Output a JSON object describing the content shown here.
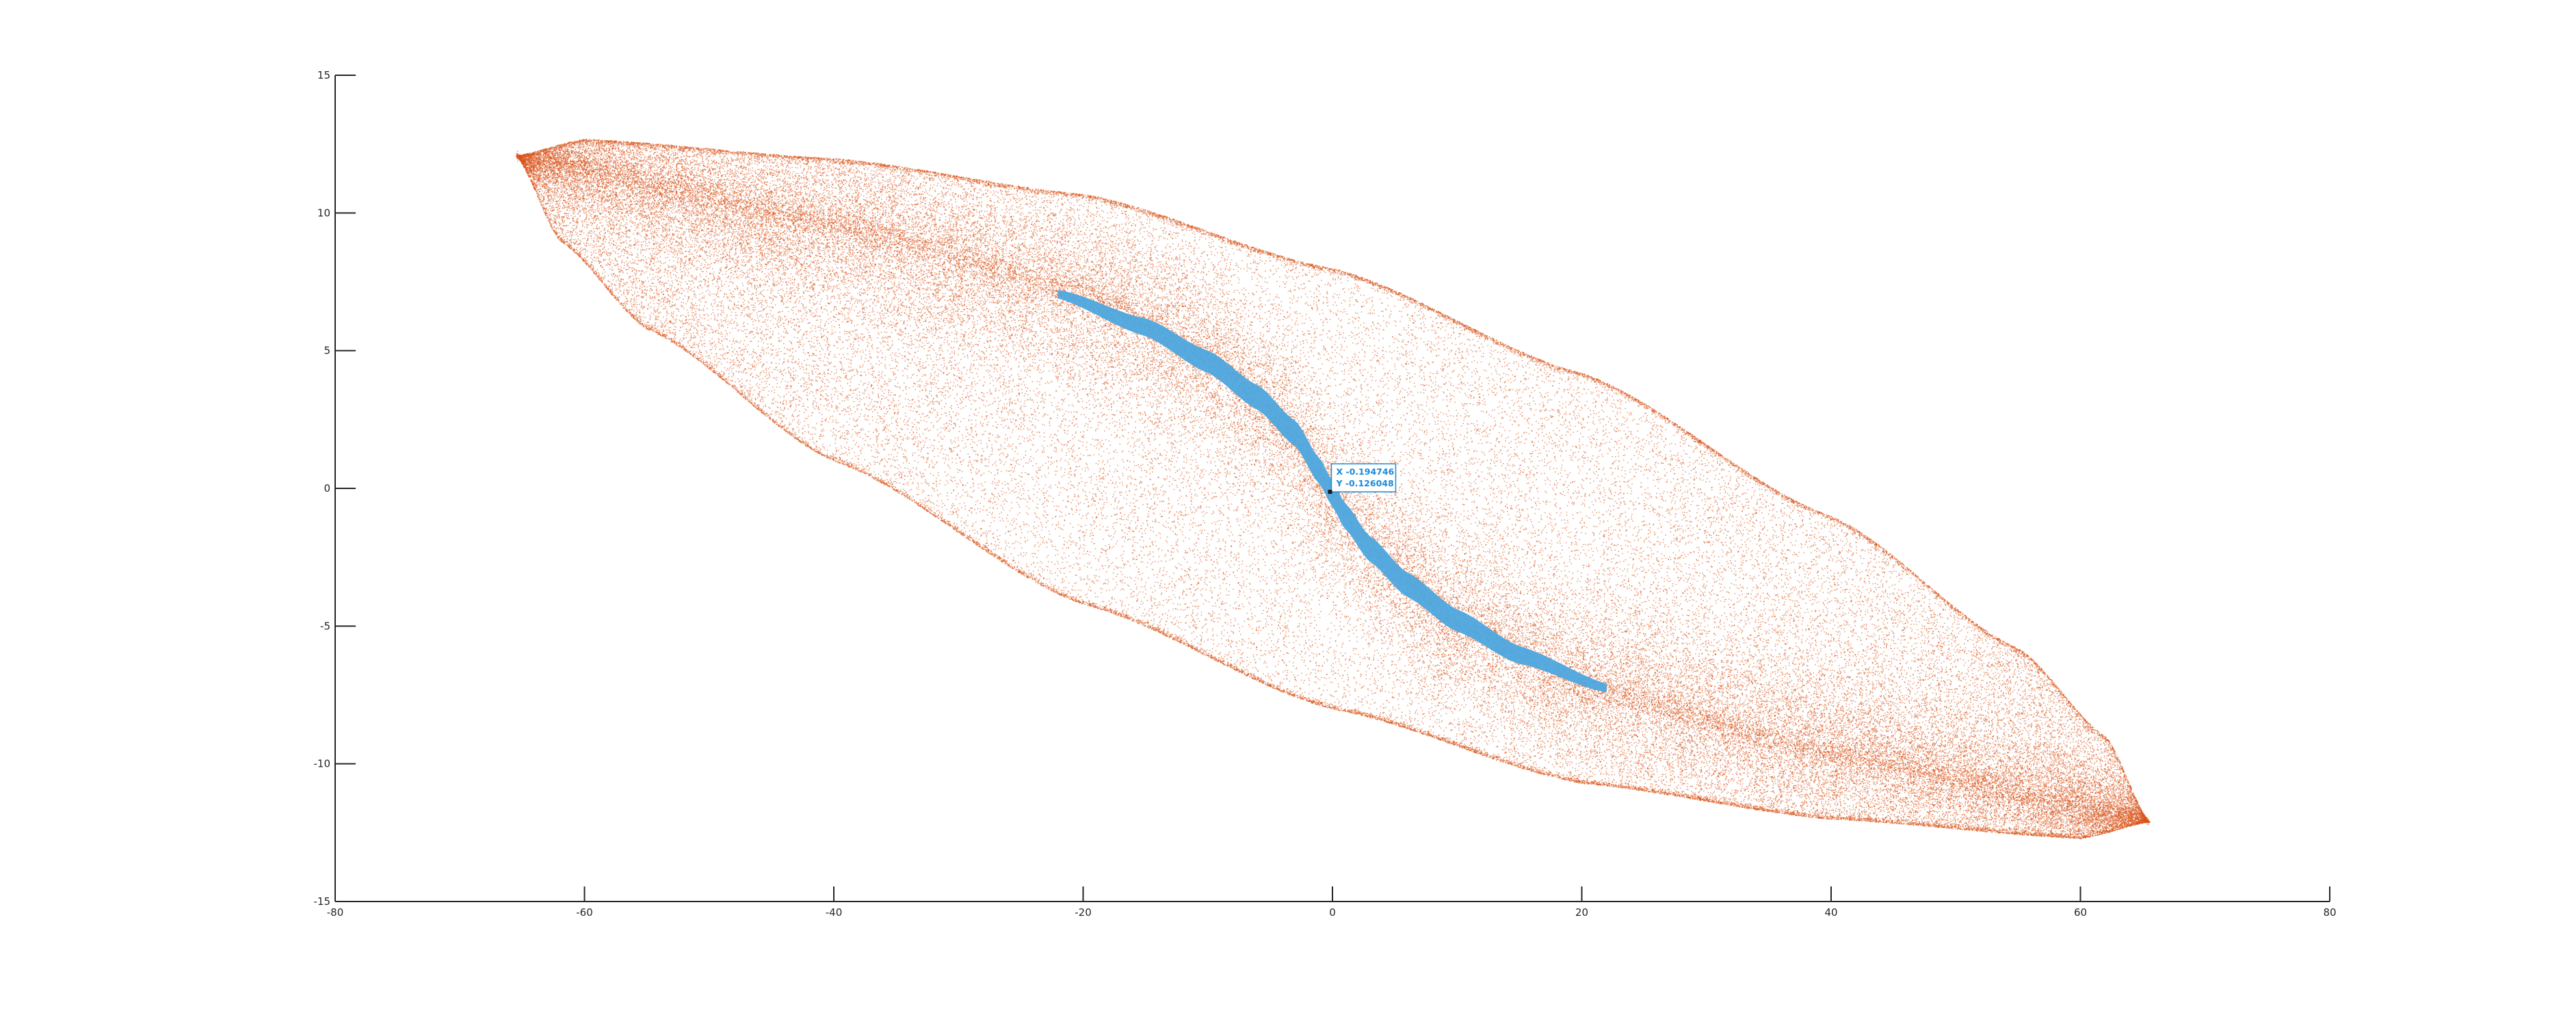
{
  "chart_data": {
    "type": "scatter",
    "title": "",
    "xlabel": "",
    "ylabel": "",
    "xlim": [
      -80,
      80
    ],
    "ylim": [
      -15,
      15
    ],
    "x_ticks": [
      "-80",
      "-60",
      "-40",
      "-20",
      "0",
      "20",
      "40",
      "60",
      "80"
    ],
    "y_ticks": [
      "15",
      "10",
      "5",
      "0",
      "-5",
      "-10",
      "-15"
    ],
    "grid": false,
    "legend": "none",
    "series": [
      {
        "color": "#d95319",
        "marker": "point",
        "description_points": "dense lens-shaped cloud of points",
        "lens_tips": [
          [
            -65.5,
            12.1
          ],
          [
            65.5,
            -12.1
          ]
        ],
        "upper_edge": [
          [
            -65.5,
            12.1
          ],
          [
            -60,
            12.7
          ],
          [
            -40,
            12.0
          ],
          [
            -20,
            10.7
          ],
          [
            0,
            8.0
          ],
          [
            20,
            4.2
          ],
          [
            40,
            -1.0
          ],
          [
            55,
            -5.8
          ],
          [
            62,
            -9.0
          ],
          [
            65.5,
            -12.1
          ]
        ],
        "lower_edge": [
          [
            -65.5,
            12.1
          ],
          [
            -62,
            9.0
          ],
          [
            -55,
            5.8
          ],
          [
            -40,
            1.0
          ],
          [
            -20,
            -4.2
          ],
          [
            0,
            -8.0
          ],
          [
            20,
            -10.7
          ],
          [
            40,
            -12.0
          ],
          [
            60,
            -12.7
          ],
          [
            65.5,
            -12.1
          ]
        ],
        "ridge": [
          [
            -65.5,
            12.1
          ],
          [
            -40,
            9.6
          ],
          [
            -20,
            7.2
          ],
          [
            -10,
            4.8
          ],
          [
            -4,
            2.4
          ],
          [
            0,
            -0.2
          ],
          [
            4,
            -2.6
          ],
          [
            10,
            -4.9
          ],
          [
            20,
            -7.2
          ],
          [
            40,
            -9.6
          ],
          [
            65.5,
            -12.1
          ]
        ]
      },
      {
        "color": "#4da6de",
        "marker": "line-band",
        "band_curve": [
          [
            -22,
            7.05
          ],
          [
            -15,
            5.85
          ],
          [
            -10,
            4.6
          ],
          [
            -6,
            3.3
          ],
          [
            -3,
            2.0
          ],
          [
            -1,
            0.6
          ],
          [
            0,
            -0.2
          ],
          [
            1,
            -1.0
          ],
          [
            3,
            -2.2
          ],
          [
            6,
            -3.5
          ],
          [
            10,
            -4.8
          ],
          [
            15,
            -6.05
          ],
          [
            22,
            -7.25
          ]
        ],
        "band_halfwidth_y": 0.42
      }
    ],
    "annotations": [
      {
        "type": "datatip",
        "x": -0.194746,
        "y": -0.126048,
        "label_x": "X -0.194746",
        "label_y": "Y -0.126048"
      }
    ],
    "colors": {
      "scatter": "#d95319",
      "band": "#4da6de",
      "datatip": "#1a8ad8",
      "axis": "#262626"
    }
  }
}
